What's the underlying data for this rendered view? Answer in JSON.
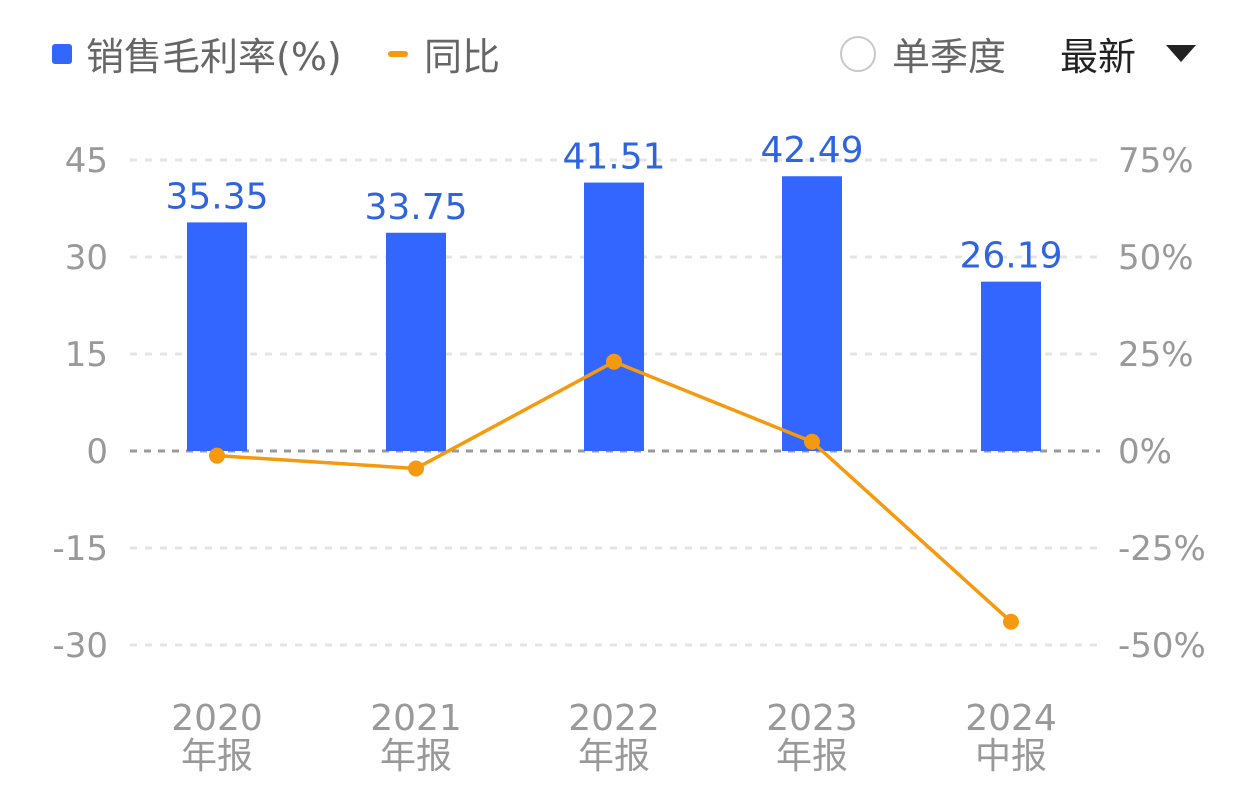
{
  "legend": {
    "bar_label": "销售毛利率(%)",
    "line_label": "同比"
  },
  "controls": {
    "quarter_toggle_label": "单季度",
    "period_select_label": "最新"
  },
  "colors": {
    "bar": "#3366ff",
    "bar_label": "#2f64de",
    "line": "#f59a0f",
    "axis_text": "#999999",
    "grid": "#e4e4e4",
    "zero_line": "#9a9a9a"
  },
  "chart_data": {
    "type": "bar+line",
    "categories": [
      [
        "2020",
        "年报"
      ],
      [
        "2021",
        "年报"
      ],
      [
        "2022",
        "年报"
      ],
      [
        "2023",
        "年报"
      ],
      [
        "2024",
        "中报"
      ]
    ],
    "series": [
      {
        "name": "销售毛利率(%)",
        "type": "bar",
        "axis": "left",
        "values": [
          35.35,
          33.75,
          41.51,
          42.49,
          26.19
        ]
      },
      {
        "name": "同比",
        "type": "line",
        "axis": "right",
        "values": [
          -1.2,
          -4.5,
          23.0,
          2.4,
          -44.0
        ]
      }
    ],
    "left_axis": {
      "ticks": [
        45,
        30,
        15,
        0,
        -15,
        -30
      ],
      "range": [
        -30,
        45
      ]
    },
    "right_axis": {
      "ticks": [
        "75%",
        "50%",
        "25%",
        "0%",
        "-25%",
        "-50%"
      ],
      "values": [
        75,
        50,
        25,
        0,
        -25,
        -50
      ],
      "range": [
        -50,
        75
      ]
    },
    "grid": true
  }
}
